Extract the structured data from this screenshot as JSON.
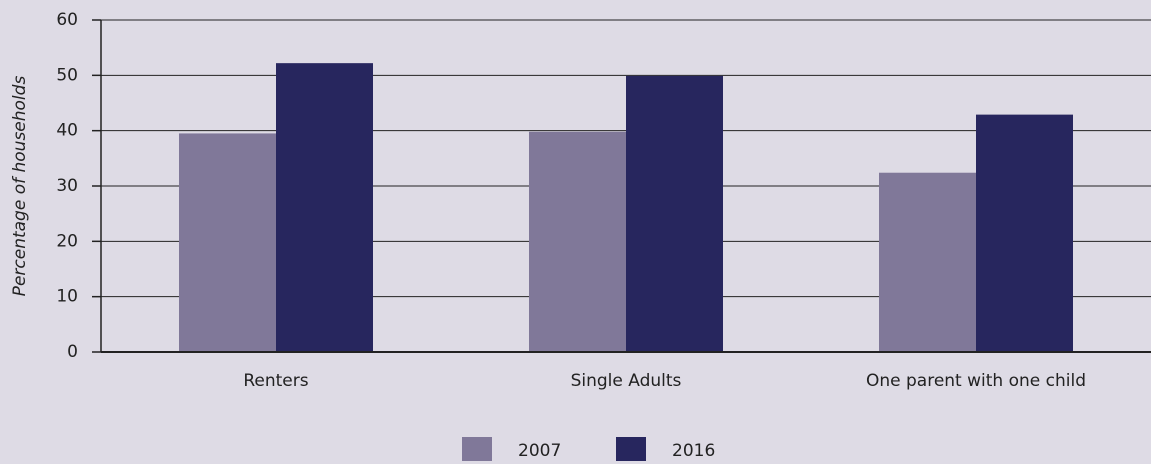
{
  "chart_data": {
    "type": "bar",
    "y_label": "Percentage of households",
    "categories": [
      "Renters",
      "Single Adults",
      "One parent with one child"
    ],
    "series": [
      {
        "name": "2007",
        "color": "#807899",
        "values": [
          39.5,
          39.8,
          32.4
        ]
      },
      {
        "name": "2016",
        "color": "#27265e",
        "values": [
          52.2,
          49.9,
          42.9
        ]
      }
    ],
    "ylim": [
      0,
      60
    ],
    "yticks": [
      0,
      10,
      20,
      30,
      40,
      50,
      60
    ],
    "grid": true
  }
}
